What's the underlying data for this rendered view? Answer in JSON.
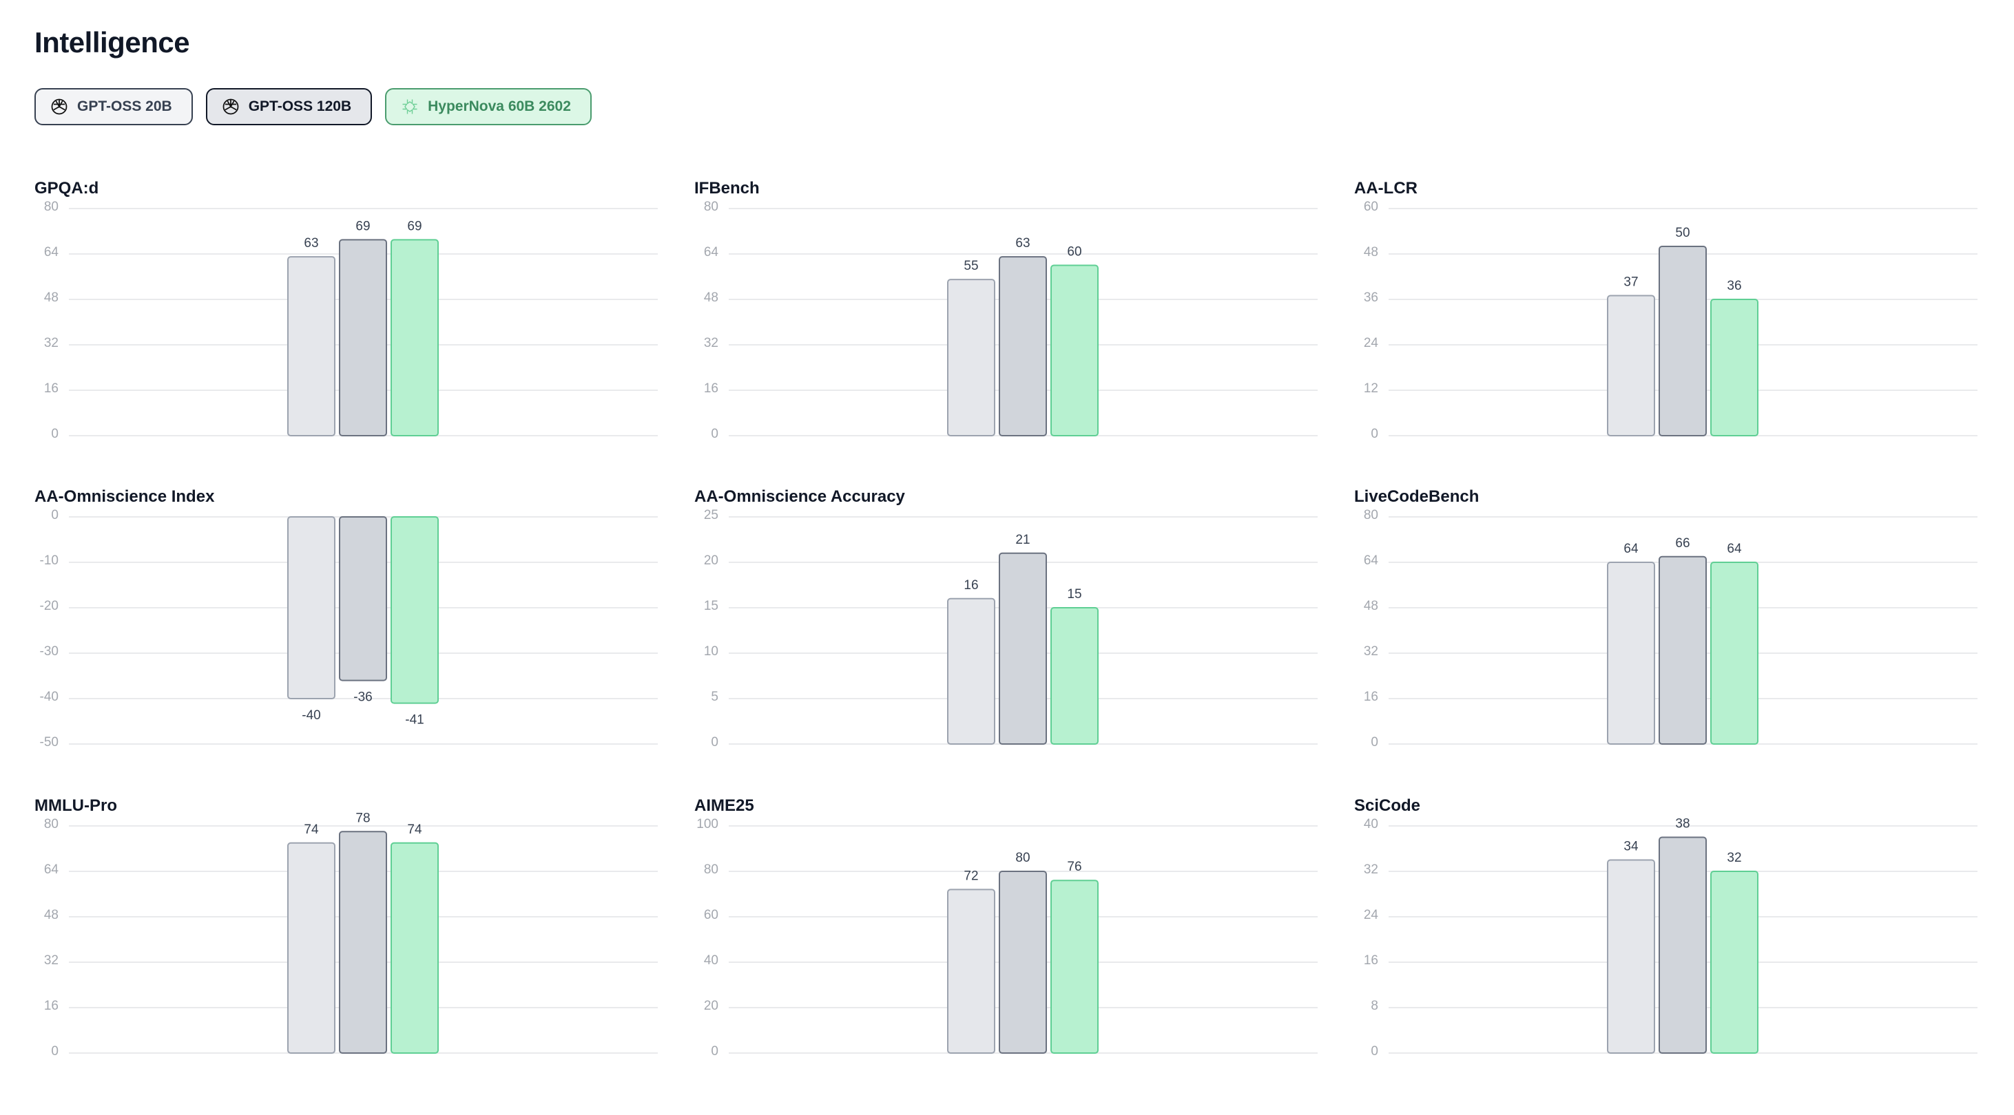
{
  "header": {
    "title": "Intelligence"
  },
  "legend": [
    {
      "label": "GPT-OSS 20B",
      "icon": "openai-logo-icon",
      "bg": "#f3f4f6",
      "border": "#374151",
      "text": "#374151"
    },
    {
      "label": "GPT-OSS 120B",
      "icon": "openai-logo-icon",
      "bg": "#e5e7eb",
      "border": "#111827",
      "text": "#111827"
    },
    {
      "label": "HyperNova 60B 2602",
      "icon": "hypernova-logo-icon",
      "bg": "#dcf7e6",
      "border": "#4a9c6e",
      "text": "#3b8a5e"
    }
  ],
  "series_colors": [
    {
      "fill": "#e5e7eb",
      "stroke": "#9ca3af"
    },
    {
      "fill": "#d1d5db",
      "stroke": "#6b7280"
    },
    {
      "fill": "#b7f1d0",
      "stroke": "#5fcf94"
    }
  ],
  "chart_data": [
    {
      "type": "bar",
      "title": "GPQA:d",
      "categories": [
        "GPT-OSS 20B",
        "GPT-OSS 120B",
        "HyperNova 60B 2602"
      ],
      "values": [
        63,
        69,
        69
      ],
      "ylim": [
        0,
        80
      ],
      "yticks": [
        "80",
        "64",
        "48",
        "32",
        "16",
        "0"
      ],
      "grid": true
    },
    {
      "type": "bar",
      "title": "IFBench",
      "categories": [
        "GPT-OSS 20B",
        "GPT-OSS 120B",
        "HyperNova 60B 2602"
      ],
      "values": [
        55,
        63,
        60
      ],
      "ylim": [
        0,
        80
      ],
      "yticks": [
        "80",
        "64",
        "48",
        "32",
        "16",
        "0"
      ],
      "grid": true
    },
    {
      "type": "bar",
      "title": "AA-LCR",
      "categories": [
        "GPT-OSS 20B",
        "GPT-OSS 120B",
        "HyperNova 60B 2602"
      ],
      "values": [
        37,
        50,
        36
      ],
      "ylim": [
        0,
        60
      ],
      "yticks": [
        "60",
        "48",
        "36",
        "24",
        "12",
        "0"
      ],
      "grid": true
    },
    {
      "type": "bar",
      "title": "AA-Omniscience Index",
      "categories": [
        "GPT-OSS 20B",
        "GPT-OSS 120B",
        "HyperNova 60B 2602"
      ],
      "values": [
        -40,
        -36,
        -41
      ],
      "ylim": [
        -50,
        0
      ],
      "yticks": [
        "0",
        "-10",
        "-20",
        "-30",
        "-40",
        "-50"
      ],
      "grid": true
    },
    {
      "type": "bar",
      "title": "AA-Omniscience Accuracy",
      "categories": [
        "GPT-OSS 20B",
        "GPT-OSS 120B",
        "HyperNova 60B 2602"
      ],
      "values": [
        16,
        21,
        15
      ],
      "ylim": [
        0,
        25
      ],
      "yticks": [
        "25",
        "20",
        "15",
        "10",
        "5",
        "0"
      ],
      "grid": true
    },
    {
      "type": "bar",
      "title": "LiveCodeBench",
      "categories": [
        "GPT-OSS 20B",
        "GPT-OSS 120B",
        "HyperNova 60B 2602"
      ],
      "values": [
        64,
        66,
        64
      ],
      "ylim": [
        0,
        80
      ],
      "yticks": [
        "80",
        "64",
        "48",
        "32",
        "16",
        "0"
      ],
      "grid": true
    },
    {
      "type": "bar",
      "title": "MMLU-Pro",
      "categories": [
        "GPT-OSS 20B",
        "GPT-OSS 120B",
        "HyperNova 60B 2602"
      ],
      "values": [
        74,
        78,
        74
      ],
      "ylim": [
        0,
        80
      ],
      "yticks": [
        "80",
        "64",
        "48",
        "32",
        "16",
        "0"
      ],
      "grid": true
    },
    {
      "type": "bar",
      "title": "AIME25",
      "categories": [
        "GPT-OSS 20B",
        "GPT-OSS 120B",
        "HyperNova 60B 2602"
      ],
      "values": [
        72,
        80,
        76
      ],
      "ylim": [
        0,
        100
      ],
      "yticks": [
        "100",
        "80",
        "60",
        "40",
        "20",
        "0"
      ],
      "grid": true
    },
    {
      "type": "bar",
      "title": "SciCode",
      "categories": [
        "GPT-OSS 20B",
        "GPT-OSS 120B",
        "HyperNova 60B 2602"
      ],
      "values": [
        34,
        38,
        32
      ],
      "ylim": [
        0,
        40
      ],
      "yticks": [
        "40",
        "32",
        "24",
        "16",
        "8",
        "0"
      ],
      "grid": true
    }
  ]
}
